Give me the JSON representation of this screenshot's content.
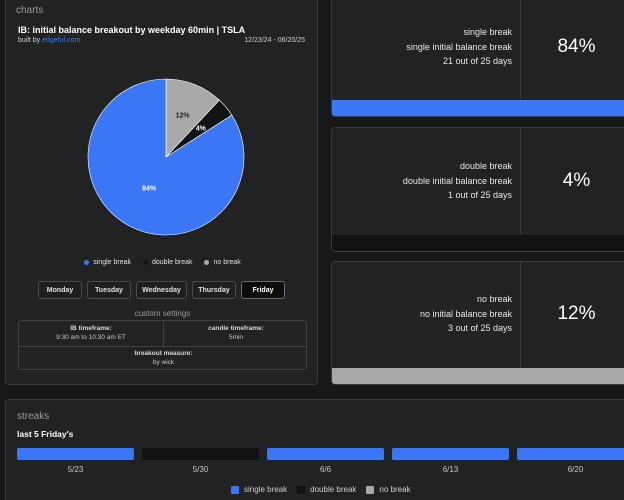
{
  "colors": {
    "single": "#3b76f6",
    "double": "#111213",
    "none": "#a8a8a8"
  },
  "charts": {
    "section_label": "charts",
    "title": "IB: initial balance breakout by weekday 60min | TSLA",
    "built_by_prefix": "built by ",
    "built_by_link": "edgeful.com",
    "date_range": "12/23/24 - 06/20/25",
    "legend": [
      "single break",
      "double break",
      "no break"
    ],
    "days": [
      "Monday",
      "Tuesday",
      "Wednesday",
      "Thursday",
      "Friday"
    ],
    "active_day": "Friday",
    "custom_title": "custom settings",
    "settings": {
      "ib_label": "IB timeframe:",
      "ib_value": "9:30 am to 10:30 am ET",
      "candle_label": "candle timeframe:",
      "candle_value": "5min",
      "measure_label": "breakout measure:",
      "measure_value": "by wick"
    }
  },
  "chart_data": {
    "type": "pie",
    "title": "IB: initial balance breakout by weekday 60min | TSLA",
    "labels": [
      "single break",
      "double break",
      "no break"
    ],
    "values": [
      84,
      4,
      12
    ],
    "value_labels": [
      "84%",
      "4%",
      "12%"
    ]
  },
  "stats": [
    {
      "line1": "single break",
      "line2": "single initial balance break",
      "line3": "21 out of 25 days",
      "pct": "84%",
      "bar_color": "#3b76f6",
      "bar_fill": 1.0
    },
    {
      "line1": "double break",
      "line2": "double initial balance break",
      "line3": "1 out of 25 days",
      "pct": "4%",
      "bar_color": "#111213",
      "bar_fill": 1.0
    },
    {
      "line1": "no break",
      "line2": "no initial balance break",
      "line3": "3 out of 25 days",
      "pct": "12%",
      "bar_color": "#a8a8a8",
      "bar_fill": 1.0
    }
  ],
  "streaks": {
    "section_label": "streaks",
    "subtitle": "last 5 Friday's",
    "items": [
      {
        "date": "5/23",
        "type": "single"
      },
      {
        "date": "5/30",
        "type": "double"
      },
      {
        "date": "6/6",
        "type": "single"
      },
      {
        "date": "6/13",
        "type": "single"
      },
      {
        "date": "6/20",
        "type": "single"
      }
    ],
    "legend": [
      "single break",
      "double break",
      "no break"
    ]
  }
}
